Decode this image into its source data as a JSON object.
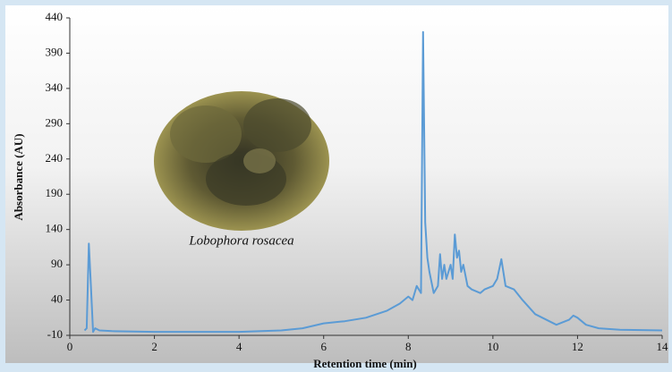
{
  "chart_data": {
    "type": "line",
    "xlabel": "Retention time (min)",
    "ylabel": "Absorbance (AU)",
    "annotation": "Lobophora rosacea",
    "color": "#5b9bd5",
    "x": [
      0.35,
      0.4,
      0.45,
      0.5,
      0.55,
      0.6,
      0.7,
      1,
      2,
      3,
      4,
      5,
      5.5,
      6,
      6.5,
      7,
      7.5,
      7.8,
      8.0,
      8.1,
      8.2,
      8.3,
      8.35,
      8.4,
      8.45,
      8.5,
      8.6,
      8.7,
      8.75,
      8.8,
      8.85,
      8.9,
      9.0,
      9.05,
      9.1,
      9.15,
      9.2,
      9.25,
      9.3,
      9.4,
      9.5,
      9.7,
      9.8,
      10.0,
      10.1,
      10.2,
      10.3,
      10.5,
      10.7,
      11,
      11.5,
      11.8,
      11.9,
      12.0,
      12.2,
      12.5,
      13,
      14
    ],
    "values": [
      -3,
      0,
      120,
      60,
      -5,
      0,
      -3,
      -4,
      -5,
      -5,
      -5,
      -3,
      0,
      7,
      10,
      15,
      25,
      35,
      45,
      40,
      60,
      50,
      420,
      150,
      100,
      80,
      50,
      60,
      105,
      70,
      90,
      70,
      90,
      70,
      133,
      100,
      110,
      80,
      90,
      60,
      55,
      50,
      55,
      60,
      70,
      98,
      60,
      55,
      40,
      20,
      5,
      12,
      18,
      15,
      5,
      0,
      -2,
      -3
    ],
    "xlim": [
      0,
      14
    ],
    "xticks": [
      0,
      2,
      4,
      6,
      8,
      10,
      12,
      14
    ],
    "ylim": [
      -10,
      440
    ],
    "yticks": [
      -10,
      40,
      90,
      140,
      190,
      240,
      290,
      340,
      390,
      440
    ]
  }
}
